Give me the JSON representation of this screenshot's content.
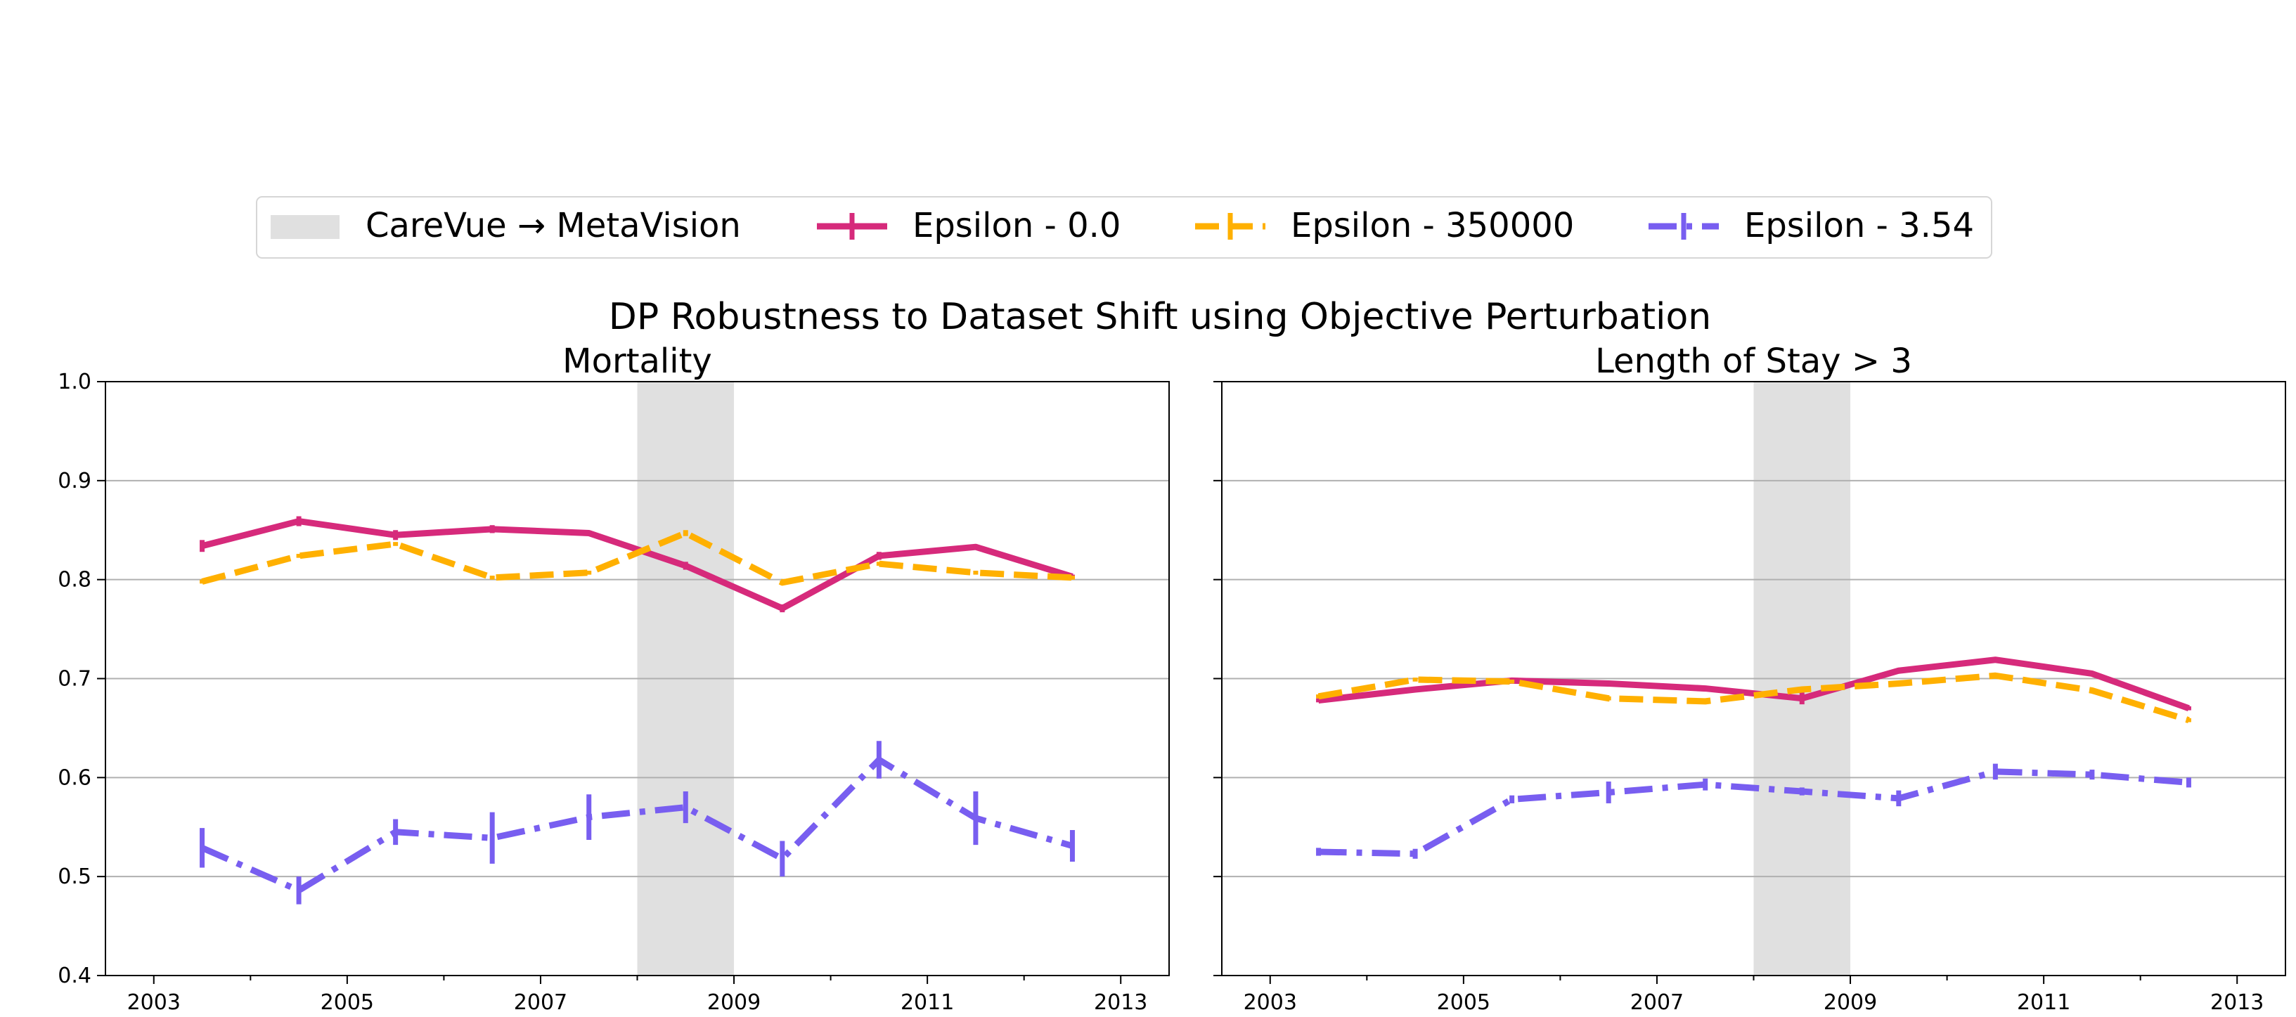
{
  "figure": {
    "suptitle": "DP Robustness to Dataset Shift using Objective Perturbation"
  },
  "legend": {
    "placement": "top-center",
    "entries": [
      {
        "label": "CareVue → MetaVision",
        "kind": "band",
        "color": "#e0e0e0"
      },
      {
        "label": "Epsilon - 0.0",
        "kind": "solid",
        "color": "#d62a7b"
      },
      {
        "label": "Epsilon - 350000",
        "kind": "dashed",
        "color": "#ffb000"
      },
      {
        "label": "Epsilon - 3.54",
        "kind": "dashdot",
        "color": "#785ef0"
      }
    ]
  },
  "chart_data": [
    {
      "type": "line",
      "title": "Mortality",
      "xlim": [
        2002.5,
        2013.5
      ],
      "ylim": [
        0.4,
        1.0
      ],
      "xticks": [
        "2003",
        "2005",
        "2007",
        "2009",
        "2011",
        "2013"
      ],
      "yticks": [
        "0.4",
        "0.5",
        "0.6",
        "0.7",
        "0.8",
        "0.9",
        "1.0"
      ],
      "grid": "horizontal",
      "shaded_region": {
        "label": "CareVue → MetaVision",
        "x": [
          2008,
          2009
        ]
      },
      "x": [
        2003.5,
        2004.5,
        2005.5,
        2006.5,
        2007.5,
        2008.5,
        2009.5,
        2010.5,
        2011.5,
        2012.5
      ],
      "series": [
        {
          "name": "Epsilon - 0.0",
          "color": "#d62a7b",
          "style": "solid",
          "values": [
            0.834,
            0.859,
            0.845,
            0.851,
            0.847,
            0.814,
            0.771,
            0.824,
            0.833,
            0.803
          ],
          "errors": [
            0.006,
            0.005,
            0.005,
            0.004,
            0.002,
            0.004,
            0.004,
            0.004,
            0.002,
            0.002
          ]
        },
        {
          "name": "Epsilon - 350000",
          "color": "#ffb000",
          "style": "dashed",
          "values": [
            0.798,
            0.824,
            0.836,
            0.802,
            0.807,
            0.847,
            0.797,
            0.816,
            0.807,
            0.802
          ],
          "errors": [
            0.002,
            0.002,
            0.002,
            0.002,
            0.002,
            0.003,
            0.002,
            0.002,
            0.002,
            0.002
          ]
        },
        {
          "name": "Epsilon - 3.54",
          "color": "#785ef0",
          "style": "dashdot",
          "values": [
            0.529,
            0.486,
            0.545,
            0.539,
            0.56,
            0.57,
            0.518,
            0.618,
            0.559,
            0.531
          ],
          "errors": [
            0.02,
            0.014,
            0.013,
            0.026,
            0.023,
            0.016,
            0.018,
            0.019,
            0.027,
            0.016
          ]
        }
      ]
    },
    {
      "type": "line",
      "title": "Length of Stay > 3",
      "xlim": [
        2002.5,
        2013.5
      ],
      "ylim": [
        0.4,
        1.0
      ],
      "xticks": [
        "2003",
        "2005",
        "2007",
        "2009",
        "2011",
        "2013"
      ],
      "yticks": [],
      "grid": "horizontal",
      "shaded_region": {
        "label": "CareVue → MetaVision",
        "x": [
          2008,
          2009
        ]
      },
      "x": [
        2003.5,
        2004.5,
        2005.5,
        2006.5,
        2007.5,
        2008.5,
        2009.5,
        2010.5,
        2011.5,
        2012.5
      ],
      "series": [
        {
          "name": "Epsilon - 0.0",
          "color": "#d62a7b",
          "style": "solid",
          "values": [
            0.678,
            0.689,
            0.698,
            0.695,
            0.69,
            0.68,
            0.708,
            0.719,
            0.705,
            0.67
          ],
          "errors": [
            0.002,
            0.002,
            0.002,
            0.002,
            0.002,
            0.006,
            0.002,
            0.002,
            0.002,
            0.002
          ]
        },
        {
          "name": "Epsilon - 350000",
          "color": "#ffb000",
          "style": "dashed",
          "values": [
            0.682,
            0.699,
            0.697,
            0.68,
            0.677,
            0.689,
            0.695,
            0.703,
            0.688,
            0.658
          ],
          "errors": [
            0.002,
            0.002,
            0.002,
            0.002,
            0.002,
            0.002,
            0.002,
            0.002,
            0.002,
            0.002
          ]
        },
        {
          "name": "Epsilon - 3.54",
          "color": "#785ef0",
          "style": "dashdot",
          "values": [
            0.525,
            0.523,
            0.578,
            0.585,
            0.593,
            0.586,
            0.579,
            0.606,
            0.603,
            0.595
          ],
          "errors": [
            0.004,
            0.005,
            0.004,
            0.011,
            0.006,
            0.004,
            0.008,
            0.008,
            0.005,
            0.005
          ]
        }
      ]
    }
  ]
}
